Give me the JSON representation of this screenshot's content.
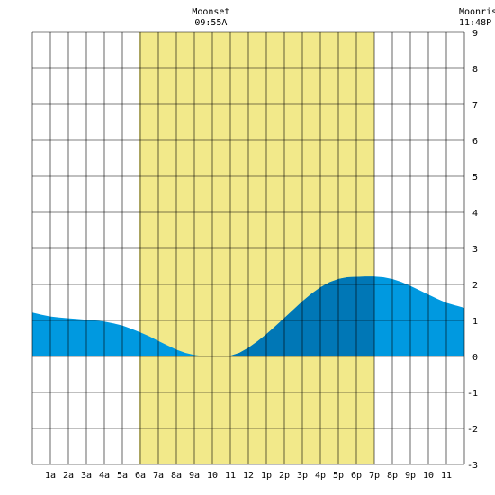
{
  "chart_data": {
    "type": "area",
    "x_tick_labels": [
      "1a",
      "2a",
      "3a",
      "4a",
      "5a",
      "6a",
      "7a",
      "8a",
      "9a",
      "10",
      "11",
      "12",
      "1p",
      "2p",
      "3p",
      "4p",
      "5p",
      "6p",
      "7p",
      "8p",
      "9p",
      "10",
      "11"
    ],
    "y_tick_labels": [
      "9",
      "8",
      "7",
      "6",
      "5",
      "4",
      "3",
      "2",
      "1",
      "0",
      "-1",
      "-2",
      "-3"
    ],
    "xlim": [
      0,
      24
    ],
    "ylim": [
      -3,
      9
    ],
    "grid": true,
    "daylight": {
      "start_hour": 5.9,
      "end_hour": 19.0
    },
    "annotations": [
      {
        "label": "Moonset",
        "time": "09:55A",
        "hour": 9.92
      },
      {
        "label": "Moonrise",
        "time": "11:48P",
        "hour": 23.8
      }
    ],
    "series": [
      {
        "x": [
          0,
          0.5,
          1,
          1.5,
          2,
          2.5,
          3,
          3.5,
          4,
          4.5,
          5,
          5.5,
          6,
          6.5,
          7,
          7.5,
          8,
          8.5,
          9,
          9.5,
          10,
          10.5,
          11,
          11.5,
          12,
          12.5,
          13,
          13.5,
          14,
          14.5,
          15,
          15.5,
          16,
          16.5,
          17,
          17.5,
          18,
          18.5,
          19,
          19.5,
          20,
          20.5,
          21,
          21.5,
          22,
          22.5,
          23,
          23.5,
          24
        ],
        "y": [
          1.22,
          1.16,
          1.11,
          1.08,
          1.06,
          1.04,
          1.02,
          1.0,
          0.97,
          0.92,
          0.86,
          0.77,
          0.67,
          0.56,
          0.43,
          0.31,
          0.19,
          0.1,
          0.04,
          0.01,
          0.0,
          0.0,
          0.02,
          0.1,
          0.24,
          0.42,
          0.62,
          0.84,
          1.07,
          1.3,
          1.53,
          1.74,
          1.92,
          2.06,
          2.15,
          2.2,
          2.21,
          2.22,
          2.22,
          2.2,
          2.15,
          2.07,
          1.96,
          1.84,
          1.72,
          1.6,
          1.49,
          1.42,
          1.35
        ]
      }
    ],
    "colors": {
      "daylight": "#f2e98a",
      "tide": "#0099e0",
      "tide_dark": "#0077b6",
      "grid": "#000000"
    }
  }
}
